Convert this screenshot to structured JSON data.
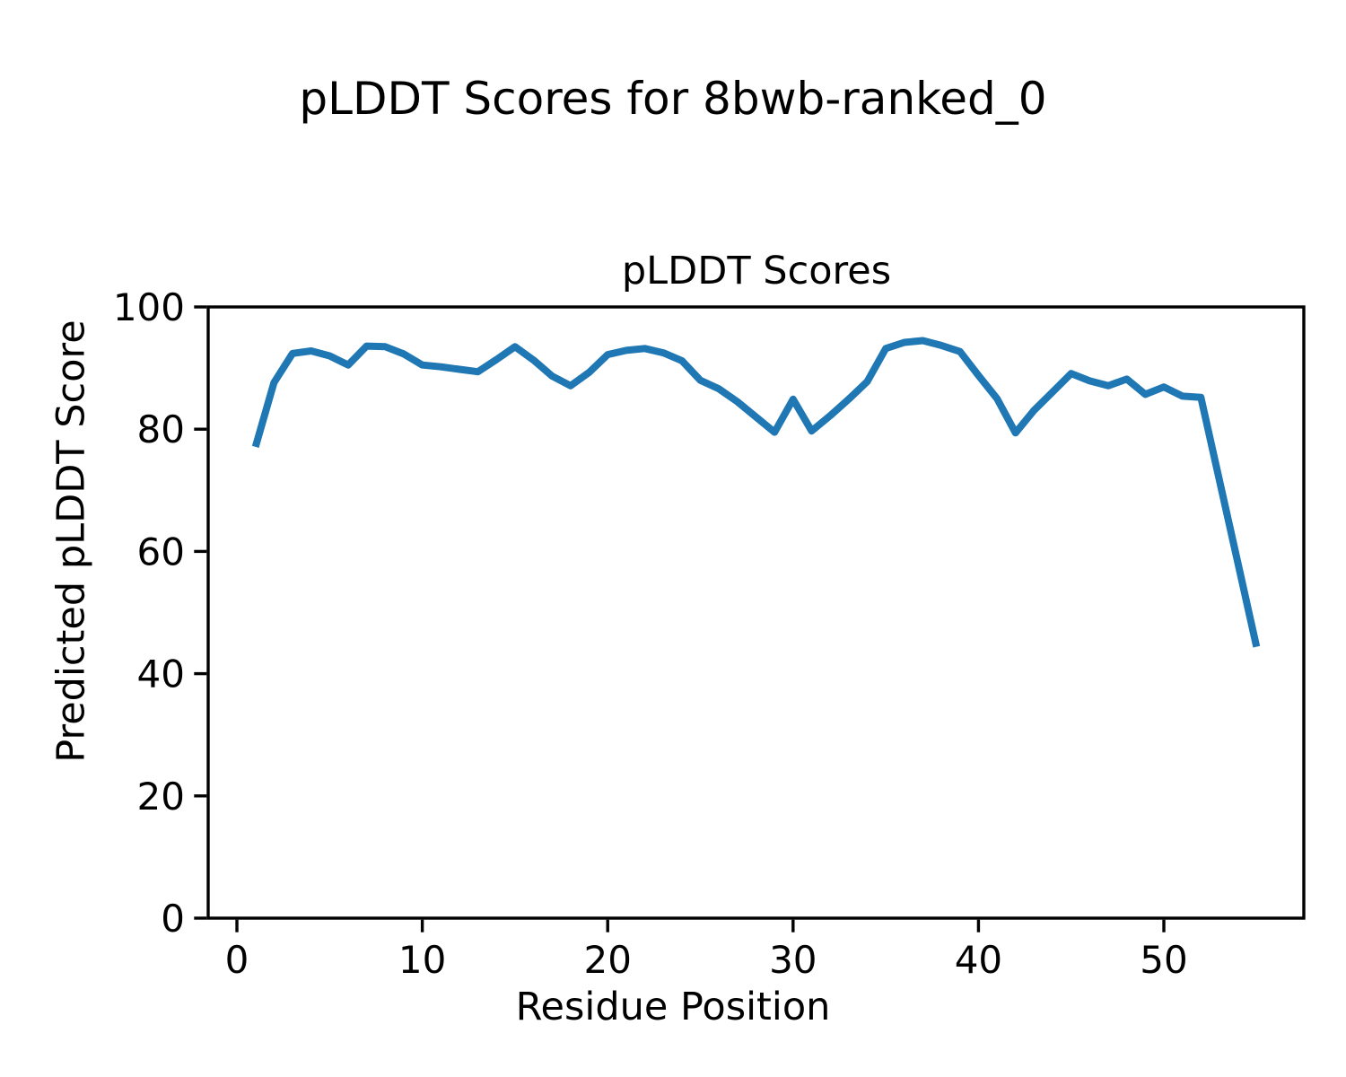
{
  "chart_data": {
    "type": "line",
    "suptitle": "pLDDT Scores for 8bwb-ranked_0",
    "title": "pLDDT Scores",
    "xlabel": "Residue Position",
    "ylabel": "Predicted pLDDT Score",
    "series_name": "pLDDT",
    "x": [
      1,
      2,
      3,
      4,
      5,
      6,
      7,
      8,
      9,
      10,
      11,
      12,
      13,
      14,
      15,
      16,
      17,
      18,
      19,
      20,
      21,
      22,
      23,
      24,
      25,
      26,
      27,
      28,
      29,
      30,
      31,
      32,
      33,
      34,
      35,
      36,
      37,
      38,
      39,
      40,
      41,
      42,
      43,
      44,
      45,
      46,
      47,
      48,
      49,
      50,
      51,
      52,
      53,
      54,
      55
    ],
    "y": [
      77.1,
      87.6,
      92.4,
      92.8,
      92.0,
      90.5,
      93.6,
      93.5,
      92.3,
      90.5,
      90.2,
      89.8,
      89.4,
      91.4,
      93.5,
      91.3,
      88.7,
      87.1,
      89.3,
      92.2,
      92.9,
      93.2,
      92.5,
      91.2,
      88.0,
      86.6,
      84.5,
      82.0,
      79.5,
      84.9,
      79.7,
      82.2,
      84.9,
      87.8,
      93.2,
      94.2,
      94.5,
      93.7,
      92.7,
      88.8,
      85.0,
      79.4,
      83.1,
      86.1,
      89.1,
      87.9,
      87.1,
      88.2,
      85.7,
      86.9,
      85.4,
      85.2,
      71.6,
      58.0,
      44.4
    ],
    "xticks": [
      0,
      10,
      20,
      30,
      40,
      50
    ],
    "yticks": [
      0,
      20,
      40,
      60,
      80,
      100
    ],
    "xlim": [
      -1.55,
      57.55
    ],
    "ylim": [
      0,
      100
    ],
    "grid": false,
    "legend": null,
    "line_color": "#1f77b4",
    "axis_color": "#000000",
    "background_color": "#ffffff"
  }
}
